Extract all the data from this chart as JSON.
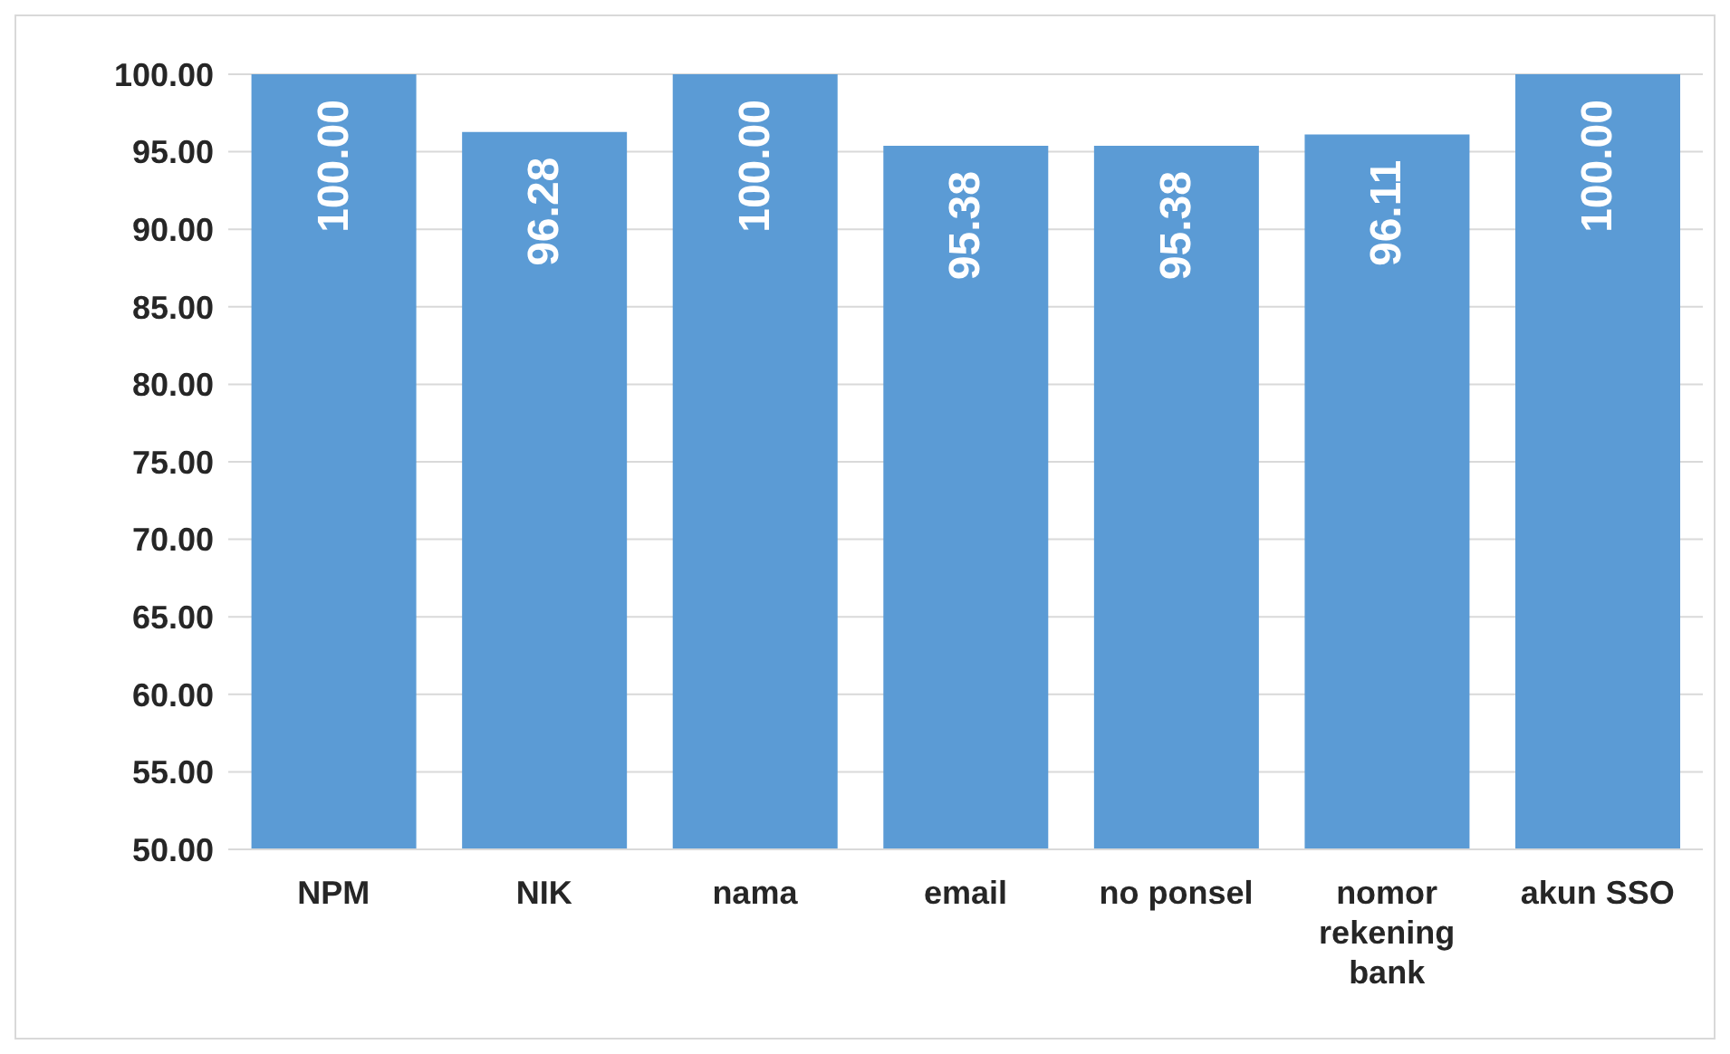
{
  "chart_data": {
    "type": "bar",
    "categories": [
      "NPM",
      "NIK",
      "nama",
      "email",
      "no ponsel",
      "nomor rekening bank",
      "akun SSO"
    ],
    "values": [
      100,
      96.28,
      100,
      95.38,
      95.38,
      96.11,
      100
    ],
    "value_labels": [
      "100.00",
      "96.28",
      "100.00",
      "95.38",
      "95.38",
      "96.11",
      "100.00"
    ],
    "color": "#5b9bd5",
    "ylim": [
      50,
      100
    ],
    "yticks": [
      {
        "value": 50,
        "label": "50.00"
      },
      {
        "value": 55,
        "label": "55.00"
      },
      {
        "value": 60,
        "label": "60.00"
      },
      {
        "value": 65,
        "label": "65.00"
      },
      {
        "value": 70,
        "label": "70.00"
      },
      {
        "value": 75,
        "label": "75.00"
      },
      {
        "value": 80,
        "label": "80.00"
      },
      {
        "value": 85,
        "label": "85.00"
      },
      {
        "value": 90,
        "label": "90.00"
      },
      {
        "value": 95,
        "label": "95.00"
      },
      {
        "value": 100,
        "label": "100.00"
      }
    ],
    "grid": "y",
    "legend": false
  }
}
